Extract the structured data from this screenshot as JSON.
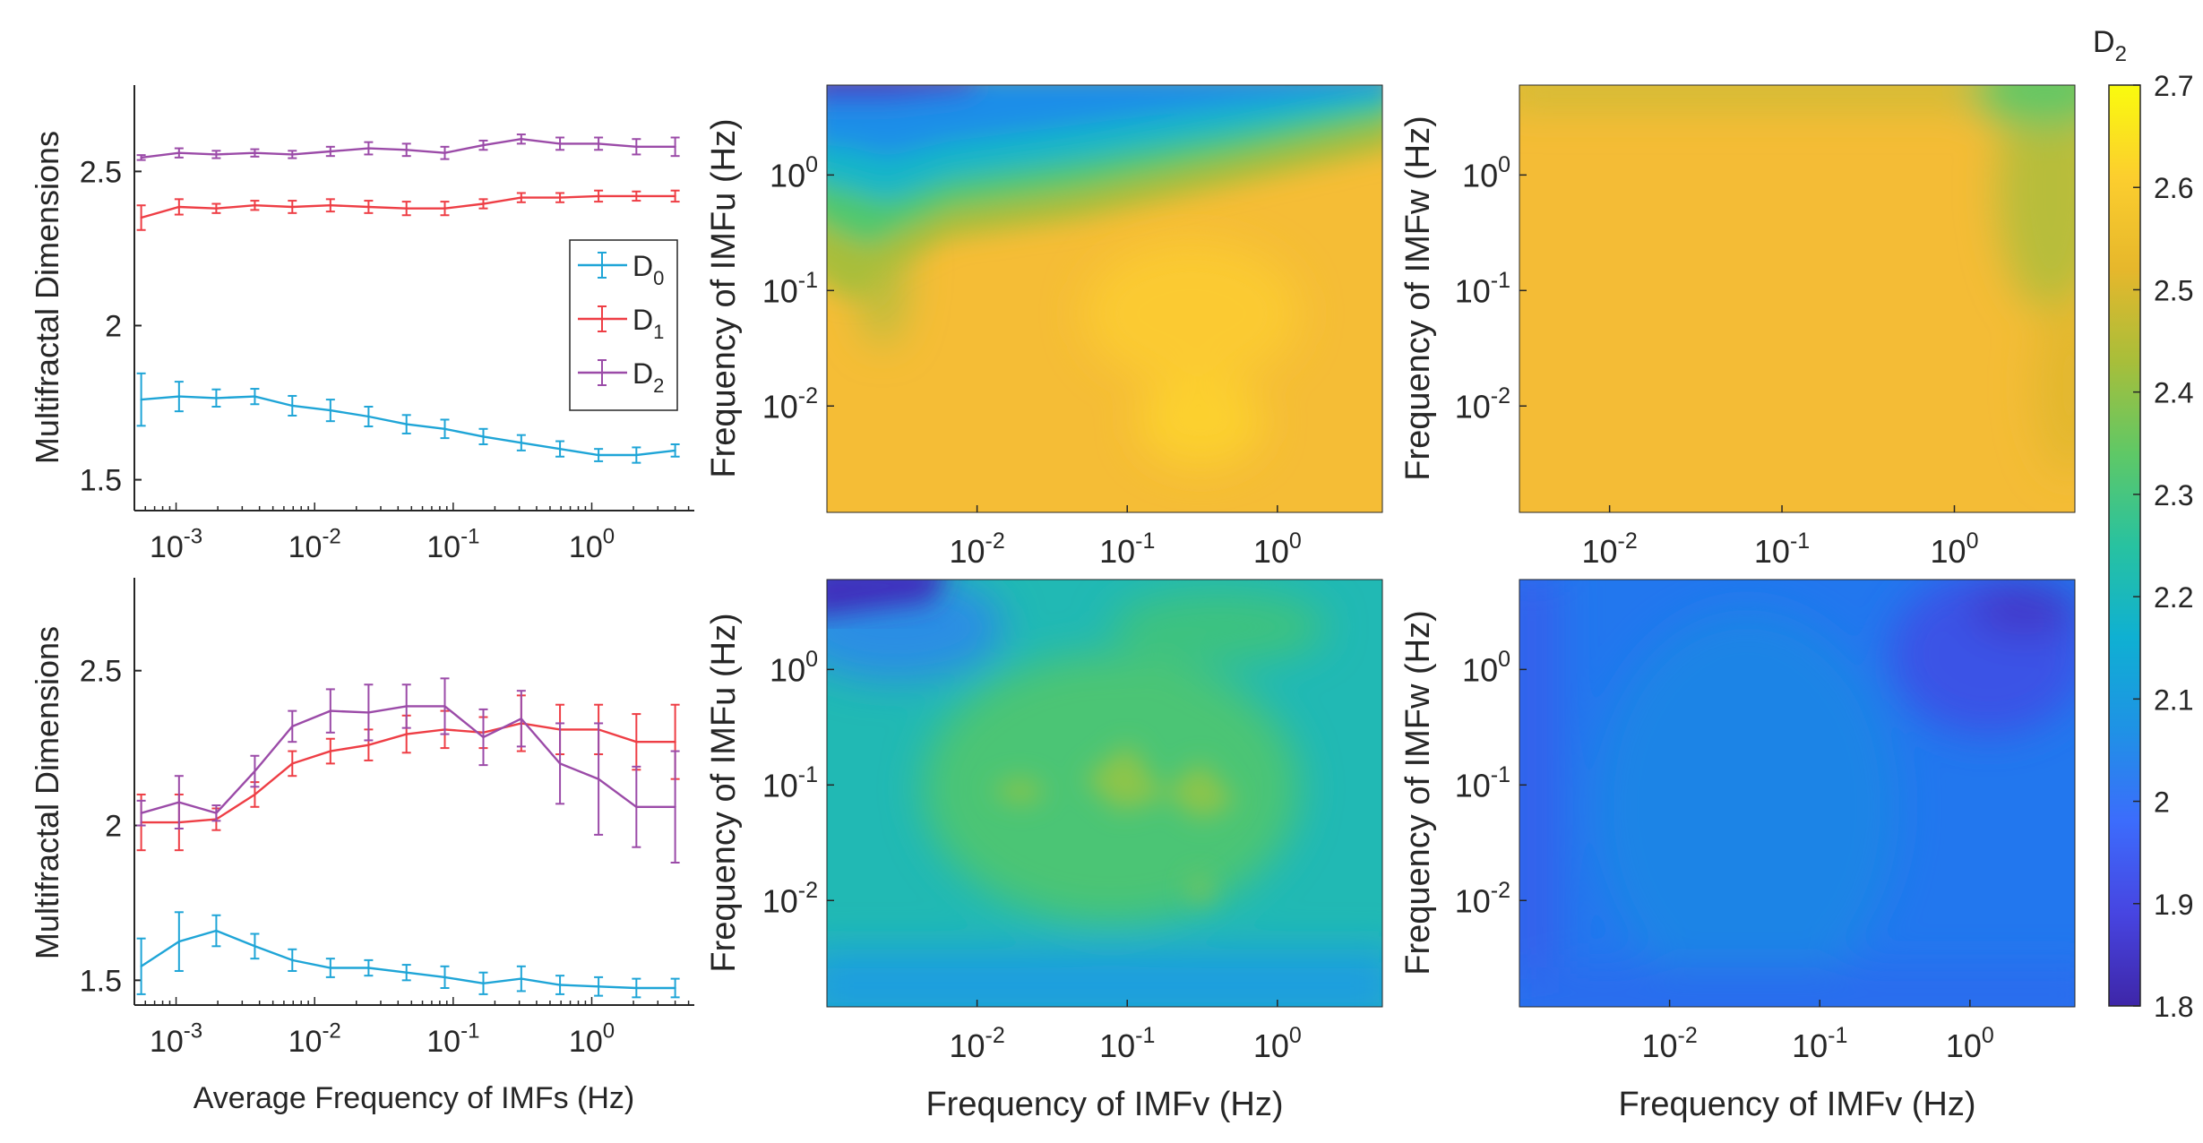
{
  "chart_data": [
    {
      "type": "line",
      "panel": "top-left",
      "xlabel": "",
      "ylabel": "Multifractal Dimensions",
      "xscale": "log",
      "xlim": [
        0.0005,
        5.5
      ],
      "ylim": [
        1.4,
        2.78
      ],
      "yticks": [
        1.5,
        2,
        2.5
      ],
      "xticks": [
        {
          "v": 0.001,
          "exp": "-3"
        },
        {
          "v": 0.01,
          "exp": "-2"
        },
        {
          "v": 0.1,
          "exp": "-1"
        },
        {
          "v": 1,
          "exp": "0"
        }
      ],
      "legend": {
        "position": "right",
        "entries": [
          "D0",
          "D1",
          "D2"
        ]
      },
      "x": [
        0.00056,
        0.00105,
        0.00195,
        0.0037,
        0.0069,
        0.013,
        0.0245,
        0.046,
        0.087,
        0.165,
        0.31,
        0.59,
        1.12,
        2.1,
        4.0
      ],
      "series": [
        {
          "name": "D0",
          "color": "#1fa5d7",
          "values": [
            1.76,
            1.77,
            1.765,
            1.77,
            1.74,
            1.725,
            1.705,
            1.68,
            1.665,
            1.64,
            1.62,
            1.6,
            1.58,
            1.58,
            1.595
          ],
          "errors": [
            0.085,
            0.048,
            0.028,
            0.025,
            0.032,
            0.035,
            0.032,
            0.03,
            0.03,
            0.025,
            0.025,
            0.025,
            0.02,
            0.025,
            0.02
          ]
        },
        {
          "name": "D1",
          "color": "#ee3e45",
          "values": [
            2.35,
            2.385,
            2.38,
            2.39,
            2.385,
            2.39,
            2.385,
            2.38,
            2.38,
            2.395,
            2.415,
            2.415,
            2.42,
            2.42,
            2.42
          ],
          "errors": [
            0.04,
            0.025,
            0.015,
            0.015,
            0.02,
            0.02,
            0.02,
            0.022,
            0.022,
            0.015,
            0.015,
            0.015,
            0.018,
            0.015,
            0.018
          ]
        },
        {
          "name": "D2",
          "color": "#9b4ba8",
          "values": [
            2.545,
            2.56,
            2.555,
            2.56,
            2.555,
            2.565,
            2.575,
            2.57,
            2.56,
            2.585,
            2.605,
            2.59,
            2.59,
            2.58,
            2.58
          ],
          "errors": [
            0.008,
            0.015,
            0.012,
            0.012,
            0.012,
            0.015,
            0.02,
            0.02,
            0.02,
            0.015,
            0.015,
            0.02,
            0.02,
            0.025,
            0.03
          ]
        }
      ]
    },
    {
      "type": "line",
      "panel": "bottom-left",
      "xlabel": "Average Frequency of IMFs (Hz)",
      "ylabel": "Multifractal Dimensions",
      "xscale": "log",
      "xlim": [
        0.0005,
        5.5
      ],
      "ylim": [
        1.42,
        2.8
      ],
      "yticks": [
        1.5,
        2,
        2.5
      ],
      "xticks": [
        {
          "v": 0.001,
          "exp": "-3"
        },
        {
          "v": 0.01,
          "exp": "-2"
        },
        {
          "v": 0.1,
          "exp": "-1"
        },
        {
          "v": 1,
          "exp": "0"
        }
      ],
      "x": [
        0.00056,
        0.00105,
        0.00195,
        0.0037,
        0.0069,
        0.013,
        0.0245,
        0.046,
        0.087,
        0.165,
        0.31,
        0.59,
        1.12,
        2.1,
        4.0
      ],
      "series": [
        {
          "name": "D0",
          "color": "#1fa5d7",
          "values": [
            1.545,
            1.625,
            1.66,
            1.61,
            1.565,
            1.54,
            1.54,
            1.525,
            1.51,
            1.49,
            1.505,
            1.485,
            1.48,
            1.475,
            1.475
          ],
          "errors": [
            0.09,
            0.095,
            0.05,
            0.04,
            0.035,
            0.03,
            0.025,
            0.025,
            0.035,
            0.035,
            0.04,
            0.03,
            0.03,
            0.03,
            0.03
          ]
        },
        {
          "name": "D1",
          "color": "#ee3e45",
          "values": [
            2.01,
            2.01,
            2.02,
            2.1,
            2.2,
            2.24,
            2.26,
            2.295,
            2.31,
            2.3,
            2.33,
            2.31,
            2.31,
            2.27,
            2.27
          ],
          "errors": [
            0.09,
            0.09,
            0.035,
            0.04,
            0.04,
            0.04,
            0.05,
            0.06,
            0.06,
            0.05,
            0.09,
            0.08,
            0.08,
            0.09,
            0.12
          ]
        },
        {
          "name": "D2",
          "color": "#9b4ba8",
          "values": [
            2.04,
            2.075,
            2.04,
            2.175,
            2.32,
            2.37,
            2.365,
            2.385,
            2.385,
            2.285,
            2.345,
            2.2,
            2.15,
            2.06,
            2.06
          ],
          "errors": [
            0.04,
            0.085,
            0.025,
            0.05,
            0.05,
            0.07,
            0.09,
            0.07,
            0.09,
            0.09,
            0.09,
            0.13,
            0.18,
            0.13,
            0.18
          ]
        }
      ]
    },
    {
      "type": "heatmap",
      "panel": "top-middle",
      "xlabel": "",
      "ylabel": "Frequency of IMFu (Hz)",
      "xscale": "log",
      "yscale": "log",
      "xlim": [
        0.001,
        5
      ],
      "ylim": [
        0.0012,
        6
      ],
      "xticks": [
        {
          "v": 0.01,
          "exp": "-2"
        },
        {
          "v": 0.1,
          "exp": "-1"
        },
        {
          "v": 1,
          "exp": "0"
        }
      ],
      "yticks": [
        {
          "v": 0.01,
          "exp": "-2"
        },
        {
          "v": 0.1,
          "exp": "-1"
        },
        {
          "v": 1,
          "exp": "0"
        }
      ],
      "pattern": "D2 about 2.5 over most of the map, rising to 2.55 near 0.01–0.5 Hz; a cooler band (2.0–2.4) sweeps from IMFu≈0.3 Hz at low IMFv to ≈3 Hz at high IMFv; minimum about 1.85 in the top-left corner"
    },
    {
      "type": "heatmap",
      "panel": "top-right",
      "xlabel": "",
      "ylabel": "Frequency of IMFw (Hz)",
      "xscale": "log",
      "yscale": "log",
      "xlim": [
        0.003,
        5
      ],
      "ylim": [
        0.0012,
        6
      ],
      "xticks": [
        {
          "v": 0.01,
          "exp": "-2"
        },
        {
          "v": 0.1,
          "exp": "-1"
        },
        {
          "v": 1,
          "exp": "0"
        }
      ],
      "yticks": [
        {
          "v": 0.01,
          "exp": "-2"
        },
        {
          "v": 0.1,
          "exp": "-1"
        },
        {
          "v": 1,
          "exp": "0"
        }
      ],
      "pattern": "nearly uniform D2 about 2.5, dipping to about 2.4 at the top and at high IMFv"
    },
    {
      "type": "heatmap",
      "panel": "bottom-middle",
      "xlabel": "Frequency of IMFv (Hz)",
      "ylabel": "Frequency of IMFu (Hz)",
      "xscale": "log",
      "yscale": "log",
      "xlim": [
        0.001,
        5
      ],
      "ylim": [
        0.0012,
        6
      ],
      "xticks": [
        {
          "v": 0.01,
          "exp": "-2"
        },
        {
          "v": 0.1,
          "exp": "-1"
        },
        {
          "v": 1,
          "exp": "0"
        }
      ],
      "yticks": [
        {
          "v": 0.01,
          "exp": "-2"
        },
        {
          "v": 0.1,
          "exp": "-1"
        },
        {
          "v": 1,
          "exp": "0"
        }
      ],
      "pattern": "D2 about 2.25–2.35 with peaks near 2.4 around IMFu≈0.1 Hz at IMFv 0.02–0.3 Hz; lower about 2.1 near the bottom; minimum about 1.85 in the top-left corner"
    },
    {
      "type": "heatmap",
      "panel": "bottom-right",
      "xlabel": "Frequency of IMFv (Hz)",
      "ylabel": "Frequency of IMFw (Hz)",
      "xscale": "log",
      "yscale": "log",
      "xlim": [
        0.001,
        5
      ],
      "ylim": [
        0.0012,
        6
      ],
      "xticks": [
        {
          "v": 0.01,
          "exp": "-2"
        },
        {
          "v": 0.1,
          "exp": "-1"
        },
        {
          "v": 1,
          "exp": "0"
        }
      ],
      "yticks": [
        {
          "v": 0.01,
          "exp": "-2"
        },
        {
          "v": 0.1,
          "exp": "-1"
        },
        {
          "v": 1,
          "exp": "0"
        }
      ],
      "pattern": "uniform D2 about 2.0–2.05, lower about 1.9 at the left edge and in the top-right region, minimum about 1.85"
    }
  ],
  "colorbar": {
    "label": "D",
    "label_sub": "2",
    "range": [
      1.8,
      2.7
    ],
    "ticks": [
      "2.7",
      "2.6",
      "2.5",
      "2.4",
      "2.3",
      "2.2",
      "2.1",
      "2",
      "1.9",
      "1.8"
    ],
    "stops": [
      "#3e26a8",
      "#4745e1",
      "#3c6cfc",
      "#1f92e5",
      "#0fb0d2",
      "#28c2a0",
      "#5fc866",
      "#a8be3a",
      "#e6b72c",
      "#fcce2e",
      "#f9fb0e"
    ]
  },
  "colors": {
    "axis": "#262626",
    "text": "#262626"
  },
  "text": {
    "ten": "10",
    "legend_letter": "D"
  }
}
